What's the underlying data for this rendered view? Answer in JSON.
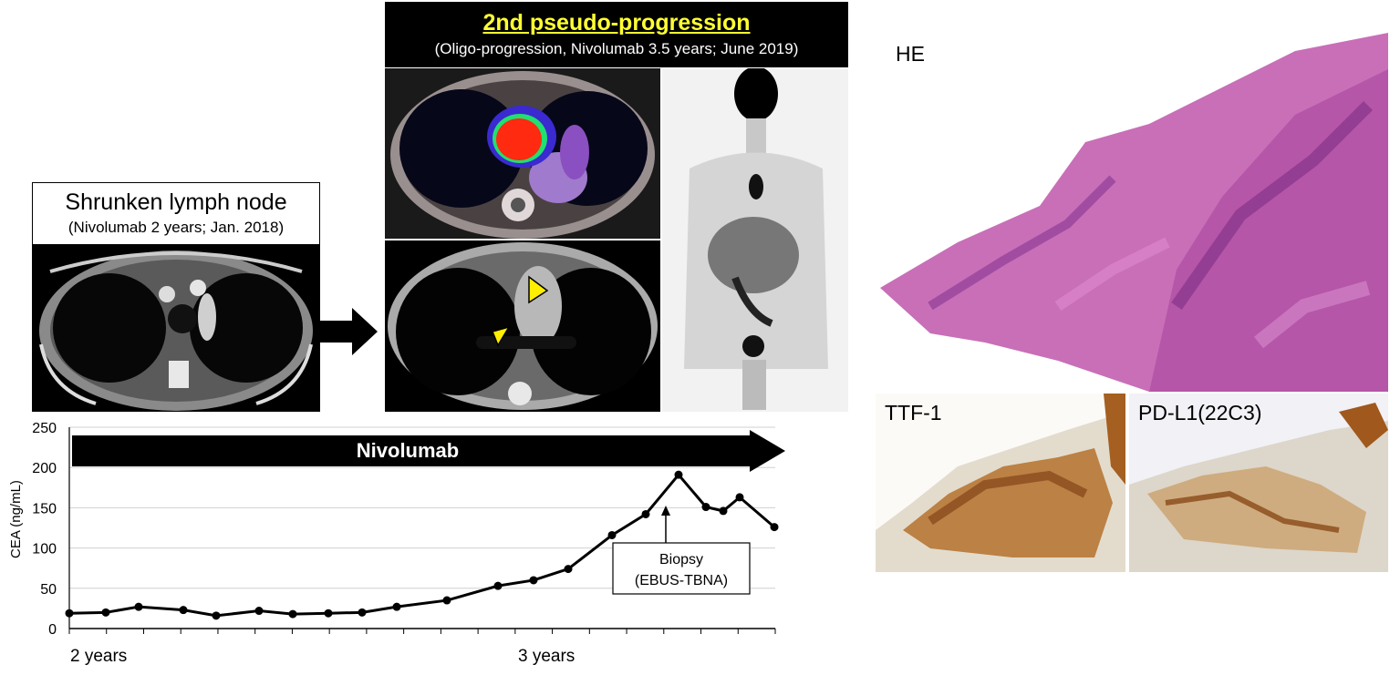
{
  "ct_left": {
    "title": "Shrunken lymph node",
    "subtitle": "(Nivolumab 2 years; Jan. 2018)"
  },
  "pet_panel": {
    "title": "2nd pseudo-progression",
    "subtitle": "(Oligo-progression, Nivolumab 3.5 years; June 2019)",
    "title_color": "#ffff33"
  },
  "pathology": {
    "he_label": "HE",
    "ttf1_label": "TTF-1",
    "pdl1_label": "PD-L1(22C3)"
  },
  "chart_data": {
    "type": "line",
    "ylabel": "CEA (ng/mL)",
    "ylim": [
      0,
      250
    ],
    "yticks": [
      "0",
      "50",
      "100",
      "150",
      "200",
      "250"
    ],
    "xtick_labels": [
      "2 years",
      "3 years"
    ],
    "treatment_bar": "Nivolumab",
    "annotation": {
      "line1": "Biopsy",
      "line2": "(EBUS-TBNA)"
    },
    "series": [
      {
        "values": [
          19,
          20,
          27,
          23,
          16,
          22,
          18,
          19,
          20,
          27,
          35,
          53,
          60,
          74,
          116,
          142,
          191,
          151,
          146,
          163,
          126
        ]
      }
    ],
    "color": "#000000"
  }
}
